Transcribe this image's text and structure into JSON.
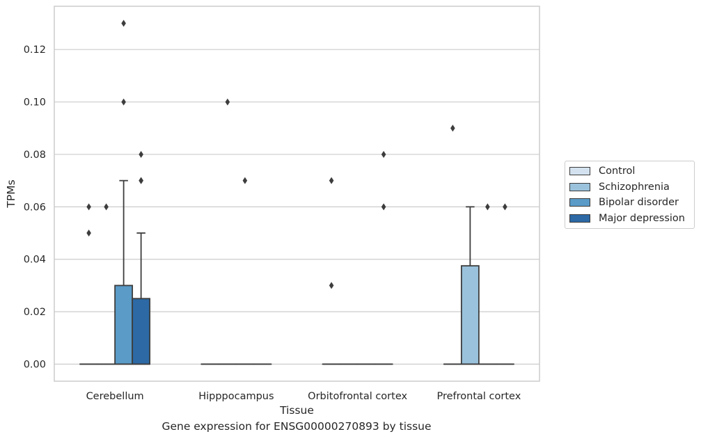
{
  "chart_data": {
    "type": "boxplot",
    "xlabel": "Tissue",
    "ylabel": "TPMs",
    "caption": "Gene expression for ENSG00000270893 by tissue",
    "categories": [
      "Cerebellum",
      "Hipppocampus",
      "Orbitofrontal cortex",
      "Prefrontal cortex"
    ],
    "ylim": [
      -0.0065,
      0.1365
    ],
    "yticks": [
      "0.00",
      "0.02",
      "0.04",
      "0.06",
      "0.08",
      "0.10",
      "0.12"
    ],
    "grid": "horizontal",
    "legend_position": "right",
    "series": [
      {
        "name": "Control",
        "color": "#d4e2ef",
        "boxes": [
          {
            "q1": 0,
            "median": 0,
            "q3": 0,
            "whisker_low": 0,
            "whisker_high": 0,
            "outliers": [
              0.05,
              0.06
            ]
          },
          {
            "q1": 0,
            "median": 0,
            "q3": 0,
            "whisker_low": 0,
            "whisker_high": 0,
            "outliers": []
          },
          {
            "q1": 0,
            "median": 0,
            "q3": 0,
            "whisker_low": 0,
            "whisker_high": 0,
            "outliers": [
              0.03,
              0.07
            ]
          },
          {
            "q1": 0,
            "median": 0,
            "q3": 0,
            "whisker_low": 0,
            "whisker_high": 0,
            "outliers": [
              0.09
            ]
          }
        ]
      },
      {
        "name": "Schizophrenia",
        "color": "#9ac2dc",
        "boxes": [
          {
            "q1": 0,
            "median": 0,
            "q3": 0,
            "whisker_low": 0,
            "whisker_high": 0,
            "outliers": [
              0.06
            ]
          },
          {
            "q1": 0,
            "median": 0,
            "q3": 0,
            "whisker_low": 0,
            "whisker_high": 0,
            "outliers": [
              0.1
            ]
          },
          {
            "q1": 0,
            "median": 0,
            "q3": 0,
            "whisker_low": 0,
            "whisker_high": 0,
            "outliers": []
          },
          {
            "q1": 0,
            "median": 0,
            "q3": 0.0375,
            "whisker_low": 0,
            "whisker_high": 0.06,
            "outliers": []
          }
        ]
      },
      {
        "name": "Bipolar disorder",
        "color": "#5a9bc8",
        "boxes": [
          {
            "q1": 0,
            "median": 0,
            "q3": 0.03,
            "whisker_low": 0,
            "whisker_high": 0.07,
            "outliers": [
              0.1,
              0.13
            ]
          },
          {
            "q1": 0,
            "median": 0,
            "q3": 0,
            "whisker_low": 0,
            "whisker_high": 0,
            "outliers": [
              0.07
            ]
          },
          {
            "q1": 0,
            "median": 0,
            "q3": 0,
            "whisker_low": 0,
            "whisker_high": 0,
            "outliers": []
          },
          {
            "q1": 0,
            "median": 0,
            "q3": 0,
            "whisker_low": 0,
            "whisker_high": 0,
            "outliers": [
              0.06
            ]
          }
        ]
      },
      {
        "name": "Major depression",
        "color": "#2c69a5",
        "boxes": [
          {
            "q1": 0,
            "median": 0,
            "q3": 0.025,
            "whisker_low": 0,
            "whisker_high": 0.05,
            "outliers": [
              0.07,
              0.07,
              0.08
            ]
          },
          {
            "q1": 0,
            "median": 0,
            "q3": 0,
            "whisker_low": 0,
            "whisker_high": 0,
            "outliers": []
          },
          {
            "q1": 0,
            "median": 0,
            "q3": 0,
            "whisker_low": 0,
            "whisker_high": 0,
            "outliers": [
              0.06,
              0.08
            ]
          },
          {
            "q1": 0,
            "median": 0,
            "q3": 0,
            "whisker_low": 0,
            "whisker_high": 0,
            "outliers": [
              0.06
            ]
          }
        ]
      }
    ]
  }
}
